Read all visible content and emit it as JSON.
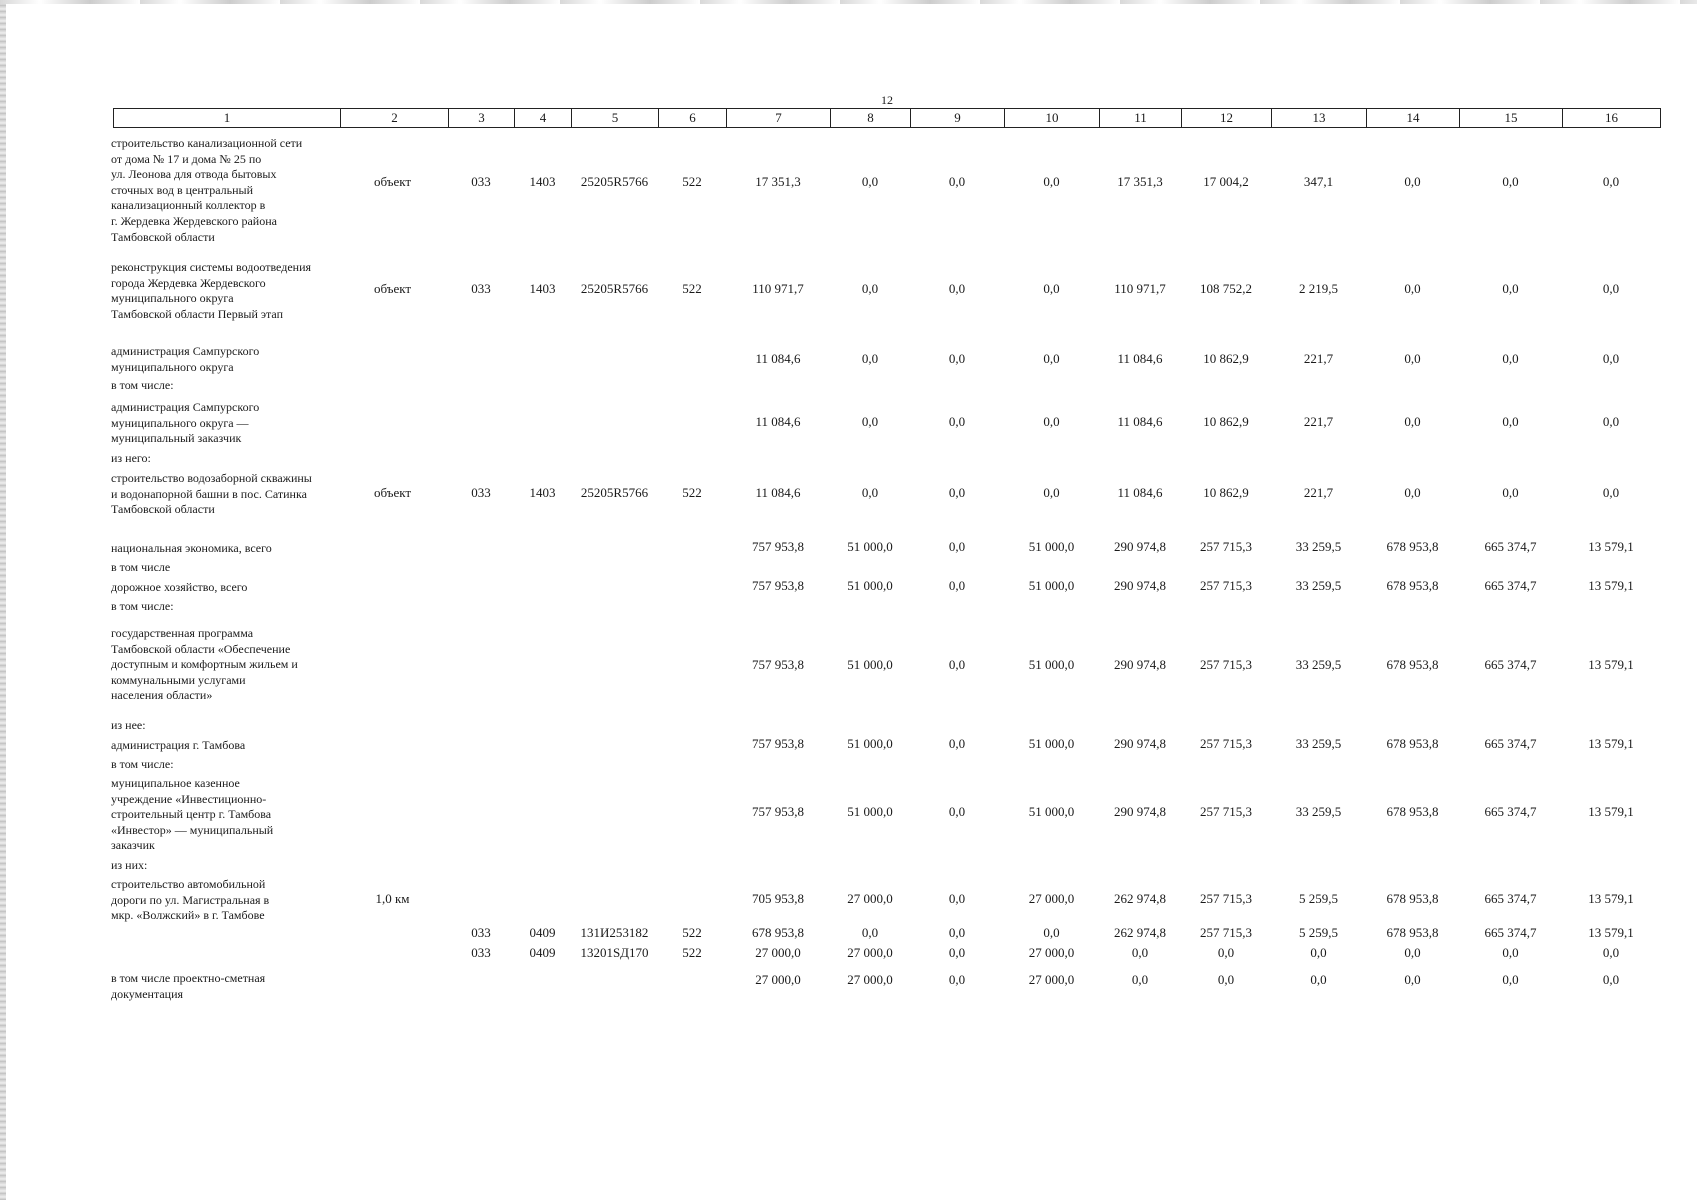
{
  "page_number": "12",
  "header_columns": [
    "1",
    "2",
    "3",
    "4",
    "5",
    "6",
    "7",
    "8",
    "9",
    "10",
    "11",
    "12",
    "13",
    "14",
    "15",
    "16"
  ],
  "rows": [
    {
      "label": "строительство канализационной сети\nот дома № 17 и дома № 25 по\nул. Леонова для отвода бытовых\nсточных вод в центральный\nканализационный коллектор в\nг. Жердевка Жердевского района\nТамбовской области",
      "cells": [
        "объект",
        "033",
        "1403",
        "25205R5766",
        "522",
        "17 351,3",
        "0,0",
        "0,0",
        "0,0",
        "17 351,3",
        "17 004,2",
        "347,1",
        "0,0",
        "0,0",
        "0,0"
      ]
    },
    {
      "label": "реконструкция системы водоотведения\nгорода Жердевка Жердевского\nмуниципального округа\nТамбовской области Первый этап",
      "cells": [
        "объект",
        "033",
        "1403",
        "25205R5766",
        "522",
        "110 971,7",
        "0,0",
        "0,0",
        "0,0",
        "110 971,7",
        "108 752,2",
        "2 219,5",
        "0,0",
        "0,0",
        "0,0"
      ]
    },
    {
      "label": "администрация Сампурского\nмуниципального округа",
      "cells": [
        "",
        "",
        "",
        "",
        "",
        "11 084,6",
        "0,0",
        "0,0",
        "0,0",
        "11 084,6",
        "10 862,9",
        "221,7",
        "0,0",
        "0,0",
        "0,0"
      ]
    },
    {
      "label": "в том числе:",
      "cells": []
    },
    {
      "label": "администрация Сампурского\nмуниципального округа —\nмуниципальный заказчик",
      "cells": [
        "",
        "",
        "",
        "",
        "",
        "11 084,6",
        "0,0",
        "0,0",
        "0,0",
        "11 084,6",
        "10 862,9",
        "221,7",
        "0,0",
        "0,0",
        "0,0"
      ]
    },
    {
      "label": "из него:",
      "cells": []
    },
    {
      "label": "строительство водозаборной скважины\nи водонапорной башни в пос. Сатинка\nТамбовской области",
      "cells": [
        "объект",
        "033",
        "1403",
        "25205R5766",
        "522",
        "11 084,6",
        "0,0",
        "0,0",
        "0,0",
        "11 084,6",
        "10 862,9",
        "221,7",
        "0,0",
        "0,0",
        "0,0"
      ]
    },
    {
      "label": "национальная экономика, всего",
      "cells": [
        "",
        "",
        "",
        "",
        "",
        "757 953,8",
        "51 000,0",
        "0,0",
        "51 000,0",
        "290 974,8",
        "257 715,3",
        "33 259,5",
        "678 953,8",
        "665 374,7",
        "13 579,1"
      ]
    },
    {
      "label": "в том числе",
      "cells": []
    },
    {
      "label": "дорожное хозяйство, всего",
      "cells": [
        "",
        "",
        "",
        "",
        "",
        "757 953,8",
        "51 000,0",
        "0,0",
        "51 000,0",
        "290 974,8",
        "257 715,3",
        "33 259,5",
        "678 953,8",
        "665 374,7",
        "13 579,1"
      ]
    },
    {
      "label": "в том числе:",
      "cells": []
    },
    {
      "label": "государственная программа\nТамбовской области «Обеспечение\nдоступным и комфортным жильем и\nкоммунальными услугами\nнаселения области»",
      "cells": [
        "",
        "",
        "",
        "",
        "",
        "757 953,8",
        "51 000,0",
        "0,0",
        "51 000,0",
        "290 974,8",
        "257 715,3",
        "33 259,5",
        "678 953,8",
        "665 374,7",
        "13 579,1"
      ]
    },
    {
      "label": "из нее:",
      "cells": []
    },
    {
      "label": "администрация г. Тамбова",
      "cells": [
        "",
        "",
        "",
        "",
        "",
        "757 953,8",
        "51 000,0",
        "0,0",
        "51 000,0",
        "290 974,8",
        "257 715,3",
        "33 259,5",
        "678 953,8",
        "665 374,7",
        "13 579,1"
      ]
    },
    {
      "label": "в том числе:",
      "cells": []
    },
    {
      "label": "муниципальное казенное\nучреждение «Инвестиционно-\nстроительный центр г. Тамбова\n«Инвестор» — муниципальный\nзаказчик",
      "cells": [
        "",
        "",
        "",
        "",
        "",
        "757 953,8",
        "51 000,0",
        "0,0",
        "51 000,0",
        "290 974,8",
        "257 715,3",
        "33 259,5",
        "678 953,8",
        "665 374,7",
        "13 579,1"
      ]
    },
    {
      "label": "из них:",
      "cells": []
    },
    {
      "label": "строительство автомобильной\nдороги по ул. Магистральная в\nмкр. «Волжский» в г. Тамбове",
      "cells": [
        "1,0 км",
        "",
        "",
        "",
        "",
        "705 953,8",
        "27 000,0",
        "0,0",
        "27 000,0",
        "262 974,8",
        "257 715,3",
        "5 259,5",
        "678 953,8",
        "665 374,7",
        "13 579,1"
      ]
    },
    {
      "label": "",
      "cells": [
        "",
        "033",
        "0409",
        "131И253182",
        "522",
        "678 953,8",
        "0,0",
        "0,0",
        "0,0",
        "262 974,8",
        "257 715,3",
        "5 259,5",
        "678 953,8",
        "665 374,7",
        "13 579,1"
      ]
    },
    {
      "label": "",
      "cells": [
        "",
        "033",
        "0409",
        "13201SД170",
        "522",
        "27 000,0",
        "27 000,0",
        "0,0",
        "27 000,0",
        "0,0",
        "0,0",
        "0,0",
        "0,0",
        "0,0",
        "0,0"
      ]
    },
    {
      "label": "в том числе проектно-сметная\nдокументация",
      "cells": [
        "",
        "",
        "",
        "",
        "",
        "27 000,0",
        "27 000,0",
        "0,0",
        "27 000,0",
        "0,0",
        "0,0",
        "0,0",
        "0,0",
        "0,0",
        "0,0"
      ]
    }
  ]
}
